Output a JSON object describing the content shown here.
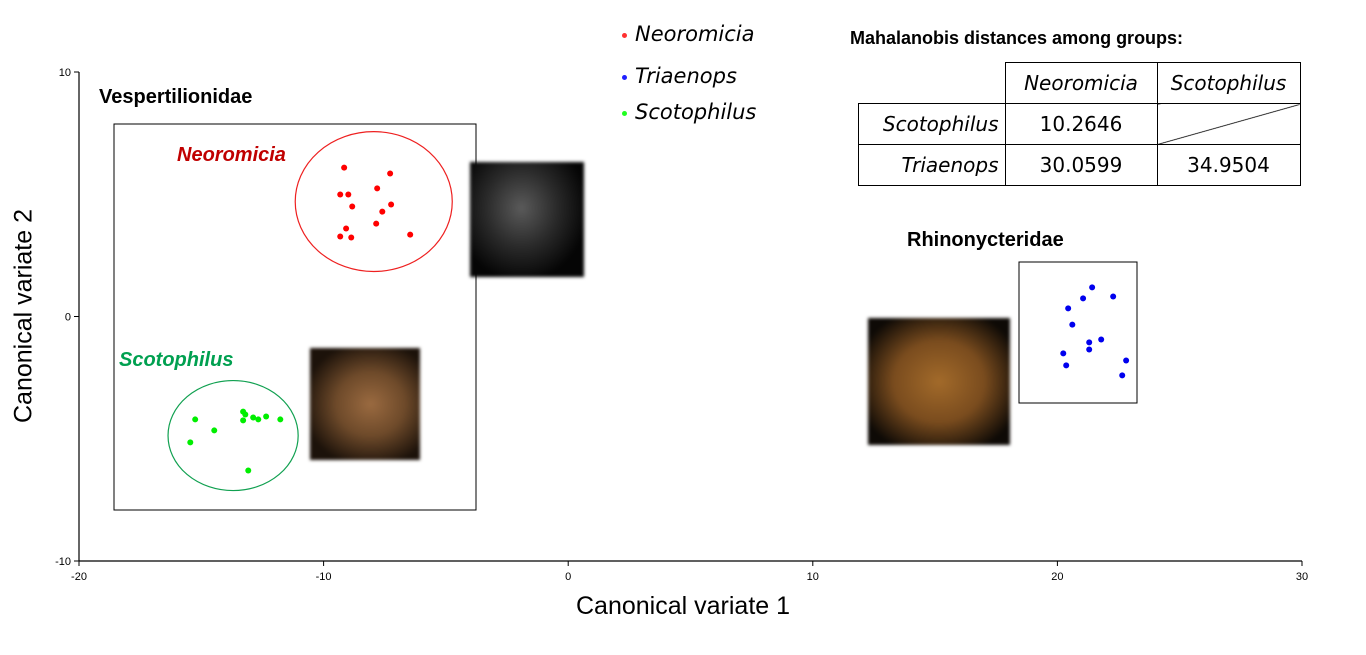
{
  "chart_data": {
    "type": "scatter",
    "xlabel": "Canonical variate 1",
    "ylabel": "Canonical variate 2",
    "xlim": [
      -20,
      30
    ],
    "ylim": [
      -10,
      10
    ],
    "xticks": [
      -20,
      -10,
      0,
      10,
      20,
      30
    ],
    "yticks": [
      -10,
      0,
      10
    ],
    "legend_position": "top-center",
    "series": [
      {
        "name": "Neoromicia",
        "color": "#ff0000",
        "ellipse": {
          "cx": -7.95,
          "cy": 4.7,
          "rx": 3.21,
          "ry": 2.86,
          "color": "#ee2020"
        },
        "points": [
          [
            -9.16,
            6.09
          ],
          [
            -7.28,
            5.85
          ],
          [
            -7.81,
            5.24
          ],
          [
            -9.32,
            4.99
          ],
          [
            -8.99,
            4.99
          ],
          [
            -8.83,
            4.5
          ],
          [
            -7.24,
            4.58
          ],
          [
            -7.6,
            4.29
          ],
          [
            -7.85,
            3.8
          ],
          [
            -9.08,
            3.6
          ],
          [
            -9.32,
            3.27
          ],
          [
            -8.87,
            3.23
          ],
          [
            -6.46,
            3.35
          ]
        ]
      },
      {
        "name": "Triaenops",
        "color": "#0000ee",
        "ellipse": null,
        "points": [
          [
            21.42,
            1.19
          ],
          [
            21.05,
            0.74
          ],
          [
            22.28,
            0.82
          ],
          [
            20.44,
            0.33
          ],
          [
            20.61,
            -0.33
          ],
          [
            21.3,
            -1.06
          ],
          [
            21.79,
            -0.94
          ],
          [
            21.3,
            -1.35
          ],
          [
            20.24,
            -1.51
          ],
          [
            20.36,
            -2.0
          ],
          [
            22.81,
            -1.8
          ],
          [
            22.65,
            -2.41
          ]
        ]
      },
      {
        "name": "Scotophilus",
        "color": "#00ee00",
        "ellipse": {
          "cx": -13.7,
          "cy": -4.87,
          "rx": 2.66,
          "ry": 2.25,
          "color": "#10a050"
        },
        "points": [
          [
            -15.25,
            -4.21
          ],
          [
            -14.47,
            -4.66
          ],
          [
            -15.45,
            -5.15
          ],
          [
            -13.29,
            -3.89
          ],
          [
            -13.2,
            -4.01
          ],
          [
            -13.29,
            -4.25
          ],
          [
            -12.88,
            -4.13
          ],
          [
            -12.67,
            -4.21
          ],
          [
            -12.35,
            -4.09
          ],
          [
            -11.77,
            -4.21
          ],
          [
            -13.08,
            -6.3
          ]
        ]
      }
    ],
    "annotations": {
      "family1": "Vespertilionidae",
      "family2": "Rhinonycteridae",
      "group_neoromicia": "Neoromicia",
      "group_scotophilus": "Scotophilus"
    },
    "table": {
      "title": "Mahalanobis distances among groups:",
      "col_headers": [
        "Neoromicia",
        "Scotophilus"
      ],
      "rows": [
        {
          "label": "Scotophilus",
          "values": [
            "10.2646",
            ""
          ]
        },
        {
          "label": "Triaenops",
          "values": [
            "30.0599",
            "34.9504"
          ]
        }
      ]
    }
  }
}
